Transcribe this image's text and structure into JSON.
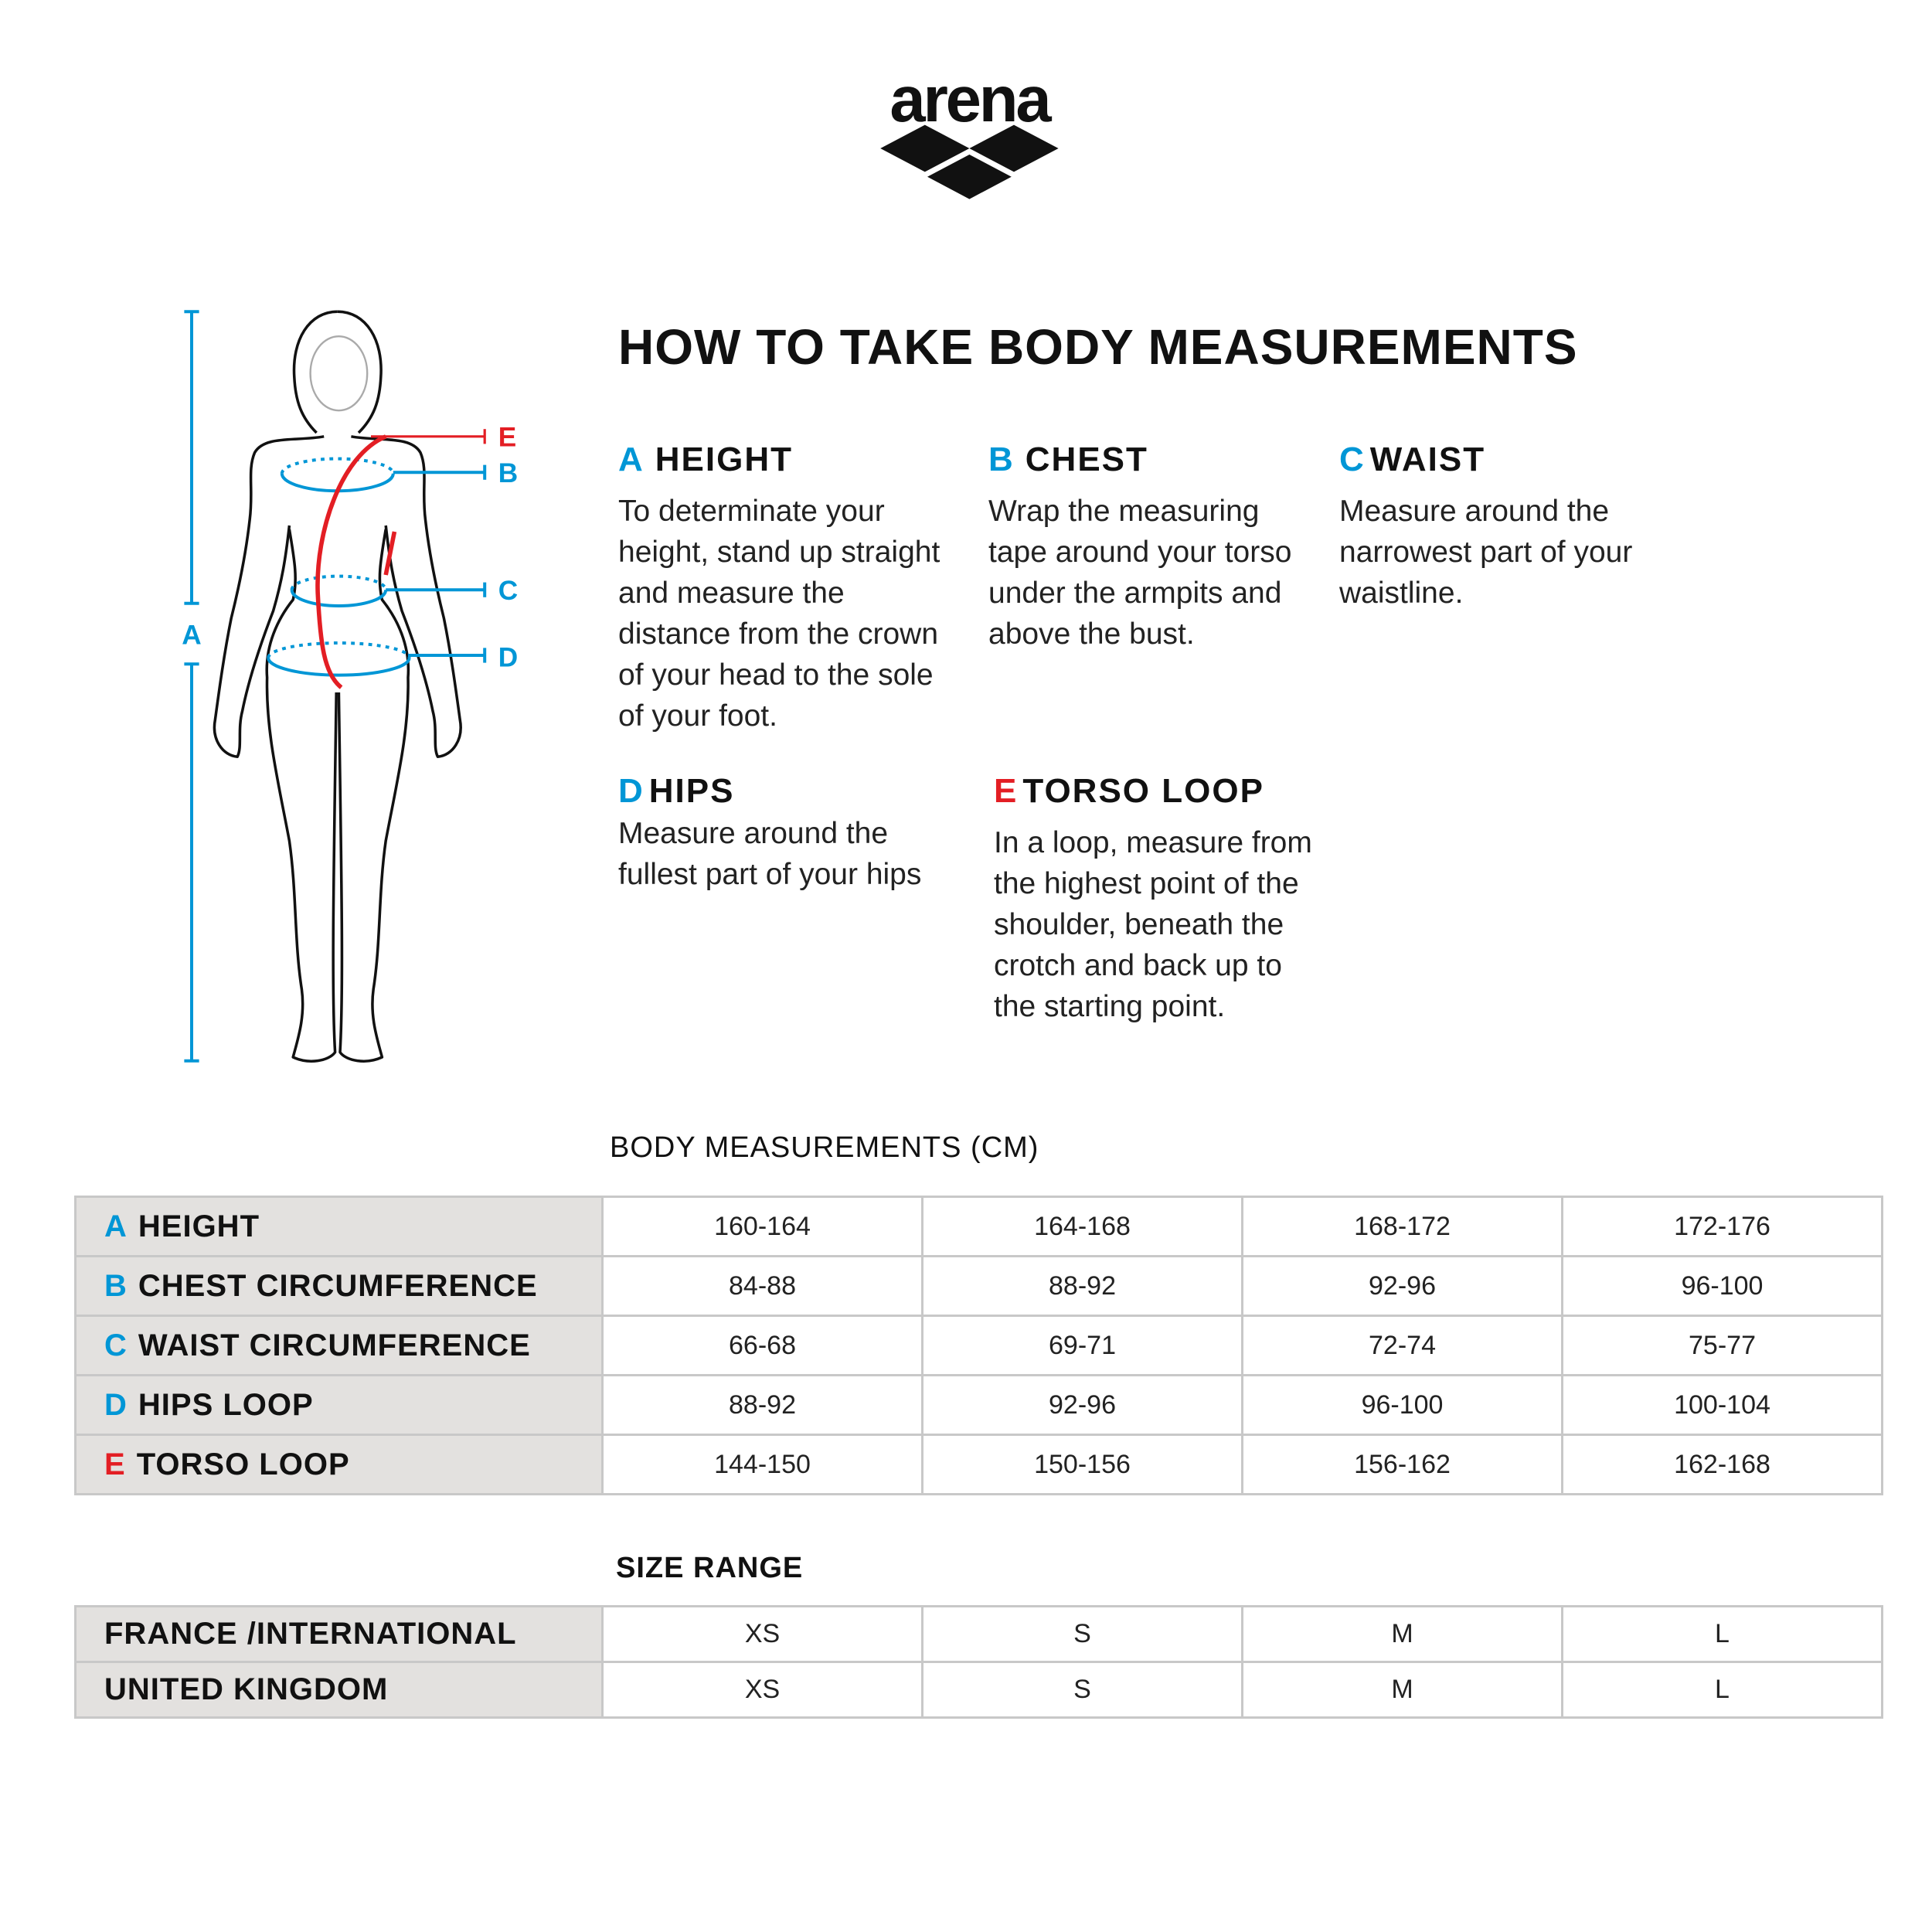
{
  "logo": {
    "text": "arena"
  },
  "title": "HOW TO TAKE BODY  MEASUREMENTS",
  "figure": {
    "labels": {
      "A": "A",
      "B": "B",
      "C": "C",
      "D": "D",
      "E": "E"
    },
    "colors": {
      "blue": "#0096d6",
      "red": "#e31e24"
    }
  },
  "sections": [
    {
      "letter": "A",
      "title": "HEIGHT",
      "color": "blue",
      "text": "To determinate your height, stand up straight and measure the distance from the crown of your head to the sole of your foot."
    },
    {
      "letter": "B",
      "title": "CHEST",
      "color": "blue",
      "text": "Wrap the measuring tape around your torso under the armpits and above the bust."
    },
    {
      "letter": "C",
      "title": "WAIST",
      "color": "blue",
      "text": "Measure around the narrowest part of your waistline."
    },
    {
      "letter": "D",
      "title": "HIPS",
      "color": "blue",
      "text": "Measure around the fullest part of your hips"
    },
    {
      "letter": "E",
      "title": "TORSO LOOP",
      "color": "red",
      "text": "In a loop, measure from the highest point of the shoulder, beneath the crotch and back up to the starting point."
    }
  ],
  "measurements": {
    "heading": "BODY MEASUREMENTS (CM)",
    "rows": [
      {
        "letter": "A",
        "label": "HEIGHT",
        "values": [
          "160-164",
          "164-168",
          "168-172",
          "172-176"
        ]
      },
      {
        "letter": "B",
        "label": "CHEST CIRCUMFERENCE",
        "values": [
          "84-88",
          "88-92",
          "92-96",
          "96-100"
        ]
      },
      {
        "letter": "C",
        "label": "WAIST CIRCUMFERENCE",
        "values": [
          "66-68",
          "69-71",
          "72-74",
          "75-77"
        ]
      },
      {
        "letter": "D",
        "label": "HIPS LOOP",
        "values": [
          "88-92",
          "92-96",
          "96-100",
          "100-104"
        ]
      },
      {
        "letter": "E",
        "label": "TORSO LOOP",
        "values": [
          "144-150",
          "150-156",
          "156-162",
          "162-168"
        ]
      }
    ]
  },
  "sizes": {
    "heading": "SIZE RANGE",
    "rows": [
      {
        "label": "FRANCE /INTERNATIONAL",
        "values": [
          "XS",
          "S",
          "M",
          "L"
        ]
      },
      {
        "label": "UNITED KINGDOM",
        "values": [
          "XS",
          "S",
          "M",
          "L"
        ]
      }
    ]
  }
}
